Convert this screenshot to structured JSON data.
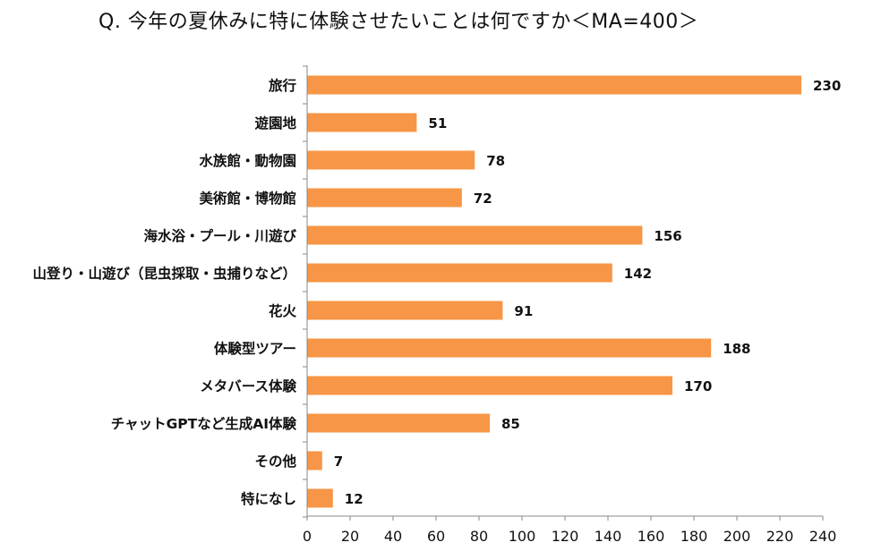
{
  "chart_data": {
    "type": "bar",
    "orientation": "horizontal",
    "title": "Q. 今年の夏休みに特に体験させたいことは何ですか＜MA=400＞",
    "categories": [
      "旅行",
      "遊園地",
      "水族館・動物園",
      "美術館・博物館",
      "海水浴・プール・川遊び",
      "山登り・山遊び（昆虫採取・虫捕りなど）",
      "花火",
      "体験型ツアー",
      "メタバース体験",
      "チャットGPTなど生成AI体験",
      "その他",
      "特になし"
    ],
    "values": [
      230,
      51,
      78,
      72,
      156,
      142,
      91,
      188,
      170,
      85,
      7,
      12
    ],
    "xlim": [
      0,
      240
    ],
    "xticks": [
      0,
      20,
      40,
      60,
      80,
      100,
      120,
      140,
      160,
      180,
      200,
      220,
      240
    ],
    "xlabel": "",
    "ylabel": "",
    "grid": false,
    "bar_color": "#F79646"
  }
}
